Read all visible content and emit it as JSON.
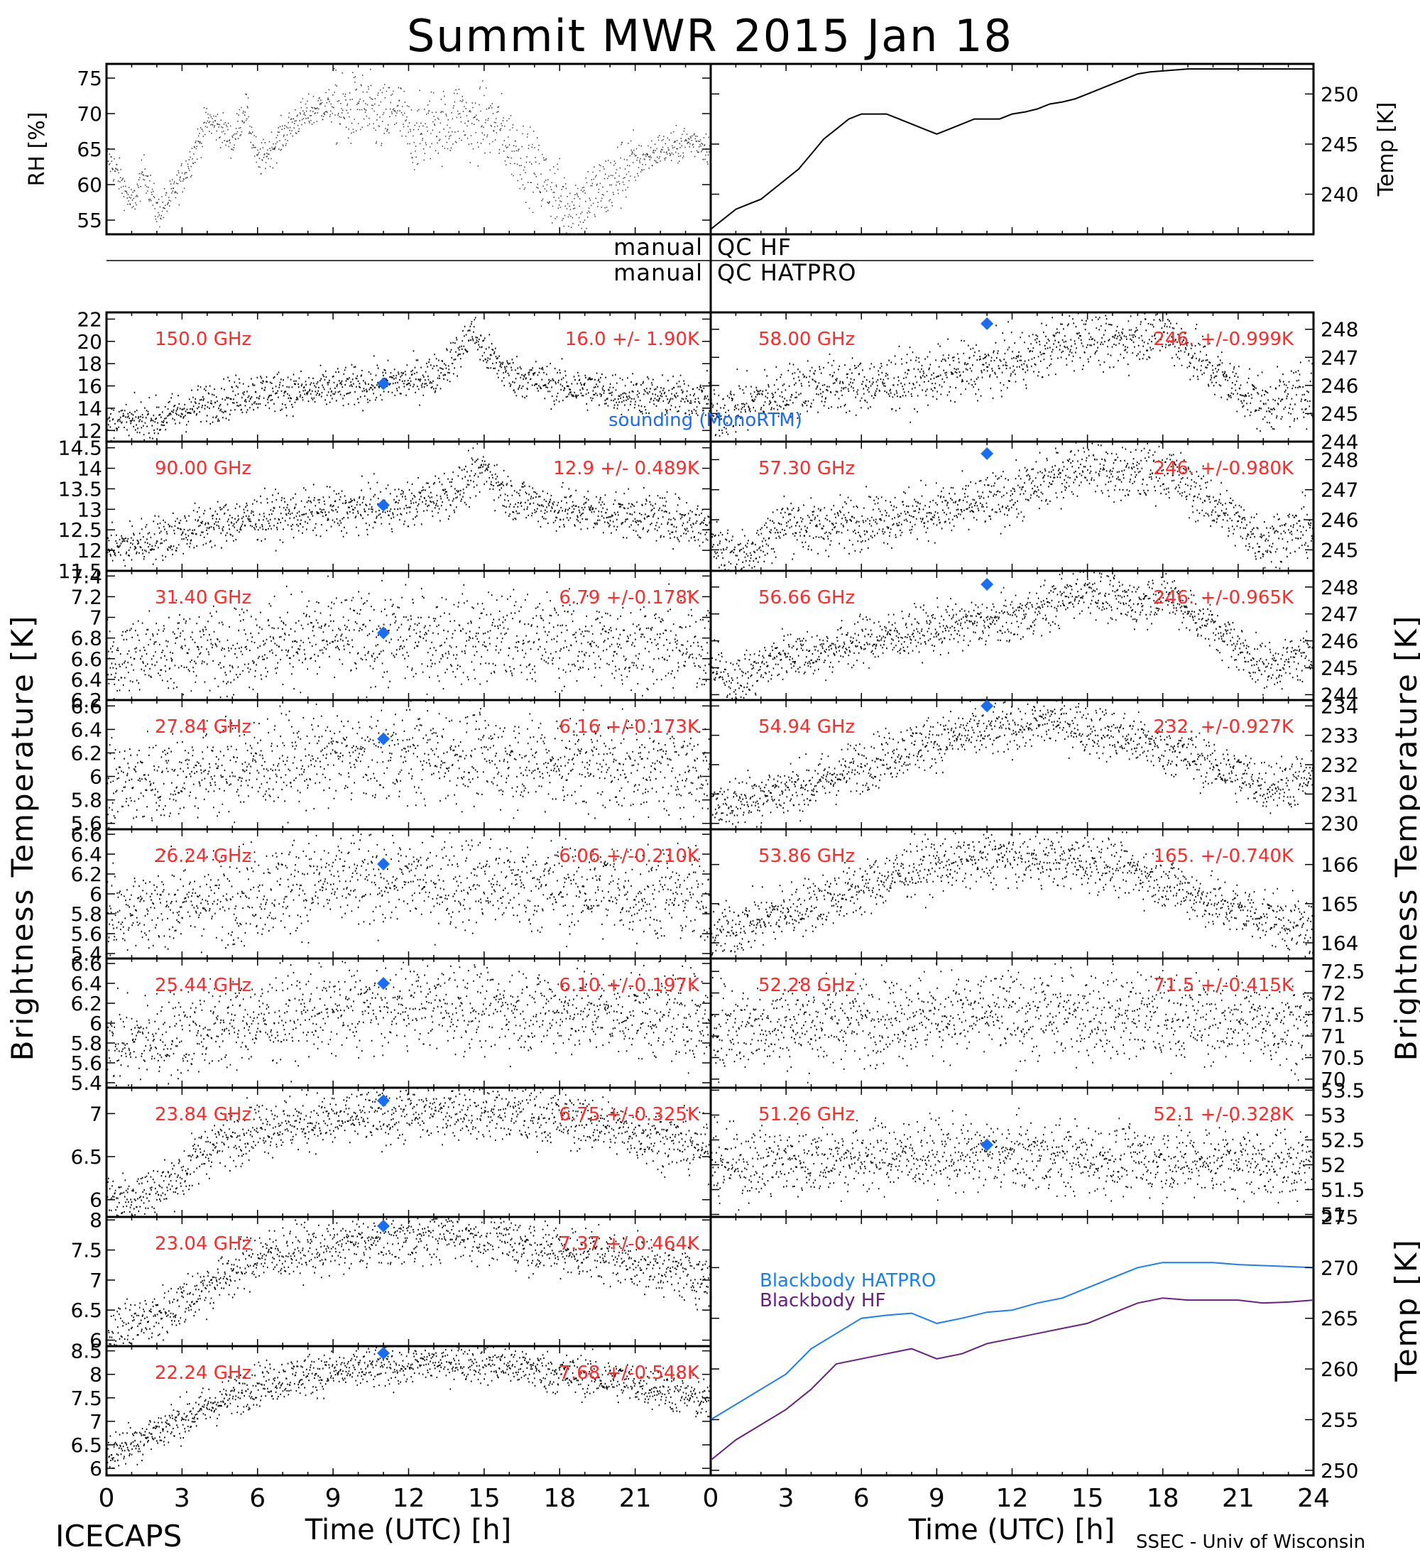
{
  "title": "Summit MWR 2015 Jan 18",
  "labels": {
    "rh_axis": "RH [%]",
    "temp_axis": "Temp [K]",
    "bt_axis_left": "Brightness Temperature [K]",
    "bt_axis_right": "Brightness Temperature [K]",
    "bb_axis": "Temp [K]",
    "x_label_left": "Time (UTC) [h]",
    "x_label_right": "Time (UTC) [h]",
    "qc_manual_1": "manual",
    "qc_label_1": "QC HF",
    "qc_manual_2": "manual",
    "qc_label_2": "QC HATPRO",
    "sounding": "sounding (MonoRTM)",
    "footer_left": "ICECAPS",
    "footer_right": "SSEC - Univ of Wisconsin"
  },
  "colors": {
    "data": "#000000",
    "freq_text": "#ff2a2a",
    "sounding": "#1a6cf0",
    "bb_hatpro": "#1a7ff0",
    "bb_hf": "#6a2080"
  },
  "chart_data": [
    {
      "type": "scatter",
      "id": "rh",
      "xlim": [
        0,
        24
      ],
      "ylim": [
        53,
        77
      ],
      "yticks": [
        55,
        60,
        65,
        70,
        75
      ],
      "x": [
        0,
        0.5,
        1,
        1.5,
        2,
        2.5,
        3,
        3.5,
        4,
        4.5,
        5,
        5.5,
        6,
        6.5,
        7,
        7.5,
        8,
        8.5,
        9,
        9.5,
        10,
        10.5,
        11,
        11.5,
        12,
        12.5,
        13,
        13.5,
        14,
        14.5,
        15,
        15.5,
        16,
        16.5,
        17,
        17.5,
        18,
        18.5,
        19,
        19.5,
        20,
        20.5,
        21,
        21.5,
        22,
        22.5,
        23,
        23.5,
        24
      ],
      "y": [
        64,
        61,
        57,
        62,
        56,
        58,
        61,
        65,
        69,
        68,
        66,
        71,
        63,
        65,
        67,
        69,
        70,
        71,
        71,
        70,
        71,
        70,
        69,
        71,
        67,
        67,
        69,
        68,
        70,
        68,
        69,
        68,
        66,
        64,
        62,
        60,
        58,
        57,
        58,
        59,
        60,
        62,
        63,
        64,
        65,
        65,
        66,
        66,
        65
      ]
    },
    {
      "type": "line",
      "id": "temp",
      "xlim": [
        0,
        24
      ],
      "ylim": [
        236,
        253
      ],
      "yticks": [
        240,
        245,
        250
      ],
      "x": [
        0,
        0.5,
        1,
        1.5,
        2,
        2.5,
        3,
        3.5,
        4,
        4.5,
        5,
        5.5,
        6,
        6.5,
        7,
        7.5,
        8,
        8.5,
        9,
        9.5,
        10,
        10.5,
        11,
        11.5,
        12,
        12.5,
        13,
        13.5,
        14,
        14.5,
        15,
        15.5,
        16,
        16.5,
        17,
        17.5,
        18,
        18.5,
        19,
        19.5,
        20,
        20.5,
        21,
        21.5,
        22,
        22.5,
        23,
        23.5,
        24
      ],
      "y": [
        236.5,
        237.5,
        238.5,
        239,
        239.5,
        240.5,
        241.5,
        242.5,
        244,
        245.5,
        246.5,
        247.5,
        248,
        248,
        248,
        247.5,
        247,
        246.5,
        246,
        246.5,
        247,
        247.5,
        247.5,
        247.5,
        248,
        248.2,
        248.5,
        249,
        249.2,
        249.5,
        250,
        250.5,
        251,
        251.5,
        252,
        252.2,
        252.3,
        252.4,
        252.5,
        252.5,
        252.5,
        252.5,
        252.5,
        252.5,
        252.5,
        252.5,
        252.5,
        252.5,
        252.5
      ]
    },
    {
      "type": "scatter",
      "id": "bt_left",
      "panels": [
        {
          "freq": "150.0 GHz",
          "stat": "16.0 +/-  1.90K",
          "ylim": [
            11,
            22.6
          ],
          "yticks": [
            12,
            14,
            16,
            18,
            20,
            22
          ],
          "noise": 0.9,
          "sounding": [
            11,
            16.2
          ],
          "x": [
            0,
            2,
            4,
            6,
            8,
            10,
            12,
            13,
            14,
            14.5,
            15,
            16,
            18,
            20,
            22,
            24
          ],
          "y": [
            12.5,
            13,
            14.5,
            15.5,
            15.5,
            16,
            16.5,
            17,
            19,
            21,
            19,
            17,
            16,
            15.5,
            15,
            15
          ]
        },
        {
          "freq": "90.00 GHz",
          "stat": "12.9 +/- 0.489K",
          "ylim": [
            11.5,
            14.65
          ],
          "yticks": [
            11.5,
            12.0,
            12.5,
            13.0,
            13.5,
            14.0,
            14.5
          ],
          "noise": 0.28,
          "sounding": [
            11,
            13.1
          ],
          "x": [
            0,
            2,
            4,
            6,
            8,
            10,
            12,
            14,
            15,
            16,
            18,
            20,
            22,
            24
          ],
          "y": [
            12.0,
            12.3,
            12.6,
            12.8,
            12.9,
            13.0,
            13.1,
            13.5,
            14.0,
            13.3,
            13.0,
            12.9,
            12.8,
            12.6
          ]
        },
        {
          "freq": "31.40 GHz",
          "stat": "6.79 +/-0.178K",
          "ylim": [
            6.2,
            7.45
          ],
          "yticks": [
            6.2,
            6.4,
            6.6,
            6.8,
            7.0,
            7.2,
            7.4
          ],
          "noise": 0.22,
          "sounding": [
            11,
            6.85
          ],
          "x": [
            0,
            4,
            8,
            12,
            16,
            20,
            24
          ],
          "y": [
            6.6,
            6.7,
            6.8,
            6.8,
            6.8,
            6.75,
            6.7
          ]
        },
        {
          "freq": "27.84 GHz",
          "stat": "6.16 +/-0.173K",
          "ylim": [
            5.55,
            6.65
          ],
          "yticks": [
            5.6,
            5.8,
            6.0,
            6.2,
            6.4,
            6.6
          ],
          "noise": 0.2,
          "sounding": [
            11,
            6.32
          ],
          "x": [
            0,
            4,
            8,
            12,
            16,
            20,
            24
          ],
          "y": [
            5.9,
            6.05,
            6.15,
            6.2,
            6.15,
            6.1,
            6.05
          ]
        },
        {
          "freq": "26.24 GHz",
          "stat": "6.06 +/-0.210K",
          "ylim": [
            5.35,
            6.65
          ],
          "yticks": [
            5.4,
            5.6,
            5.8,
            6.0,
            6.2,
            6.4,
            6.6
          ],
          "noise": 0.24,
          "sounding": [
            11,
            6.3
          ],
          "x": [
            0,
            4,
            8,
            12,
            16,
            20,
            24
          ],
          "y": [
            5.8,
            5.95,
            6.1,
            6.15,
            6.1,
            6.05,
            5.95
          ]
        },
        {
          "freq": "25.44 GHz",
          "stat": "6.10 +/-0.197K",
          "ylim": [
            5.35,
            6.65
          ],
          "yticks": [
            5.4,
            5.6,
            5.8,
            6.0,
            6.2,
            6.4,
            6.6
          ],
          "noise": 0.22,
          "sounding": [
            11,
            6.4
          ],
          "x": [
            0,
            4,
            8,
            12,
            16,
            20,
            24
          ],
          "y": [
            5.75,
            5.95,
            6.1,
            6.2,
            6.15,
            6.1,
            6.05
          ]
        },
        {
          "freq": "23.84 GHz",
          "stat": "6.75 +/-0.325K",
          "ylim": [
            5.8,
            7.3
          ],
          "yticks": [
            6.0,
            6.5,
            7.0
          ],
          "noise": 0.16,
          "sounding": [
            11,
            7.15
          ],
          "x": [
            0,
            2,
            3,
            4,
            6,
            8,
            10,
            12,
            14,
            16,
            18,
            20,
            22,
            24
          ],
          "y": [
            6.0,
            6.1,
            6.3,
            6.6,
            6.85,
            6.9,
            6.95,
            7.0,
            7.05,
            7.0,
            6.95,
            6.85,
            6.7,
            6.6
          ]
        },
        {
          "freq": "23.04 GHz",
          "stat": "7.37 +/-0.464K",
          "ylim": [
            5.9,
            8.05
          ],
          "yticks": [
            6.0,
            6.5,
            7.0,
            7.5,
            8.0
          ],
          "noise": 0.22,
          "sounding": [
            11,
            7.9
          ],
          "x": [
            0,
            2,
            4,
            6,
            8,
            10,
            12,
            14,
            16,
            18,
            20,
            22,
            24
          ],
          "y": [
            6.1,
            6.4,
            6.9,
            7.4,
            7.5,
            7.6,
            7.7,
            7.8,
            7.65,
            7.5,
            7.4,
            7.2,
            7.0
          ]
        },
        {
          "freq": "22.24 GHz",
          "stat": "7.68 +/-0.548K",
          "ylim": [
            5.85,
            8.6
          ],
          "yticks": [
            6.0,
            6.5,
            7.0,
            7.5,
            8.0,
            8.5
          ],
          "noise": 0.22,
          "sounding": [
            11,
            8.45
          ],
          "x": [
            0,
            2,
            4,
            6,
            8,
            10,
            12,
            14,
            16,
            18,
            20,
            22,
            24
          ],
          "y": [
            6.3,
            6.8,
            7.3,
            7.8,
            8.0,
            8.1,
            8.2,
            8.3,
            8.2,
            8.0,
            7.9,
            7.7,
            7.4
          ]
        }
      ]
    },
    {
      "type": "scatter",
      "id": "bt_right",
      "panels": [
        {
          "freq": "58.00 GHz",
          "stat": "246. +/-0.999K",
          "ylim": [
            244,
            248.6
          ],
          "yticks": [
            244,
            245,
            246,
            247,
            248
          ],
          "noise": 0.5,
          "sounding": [
            11,
            248.2
          ],
          "x": [
            0,
            2,
            4,
            6,
            8,
            10,
            12,
            14,
            15,
            16,
            17,
            18,
            20,
            22,
            24
          ],
          "y": [
            245,
            245.5,
            246,
            246,
            246.2,
            246.5,
            246.8,
            247.5,
            247.8,
            247.5,
            247.8,
            248,
            246.5,
            245.3,
            245.8
          ]
        },
        {
          "freq": "57.30 GHz",
          "stat": "246. +/-0.980K",
          "ylim": [
            244.3,
            248.6
          ],
          "yticks": [
            245,
            246,
            247,
            248
          ],
          "noise": 0.45,
          "sounding": [
            11,
            248.2
          ],
          "x": [
            0,
            1,
            2,
            3,
            4,
            6,
            8,
            10,
            12,
            14,
            15,
            16,
            17,
            18,
            20,
            22,
            24
          ],
          "y": [
            245.3,
            244.8,
            245.2,
            246,
            245.7,
            246,
            246.2,
            246.4,
            246.8,
            247.5,
            248,
            247.5,
            247.5,
            247.7,
            246.5,
            245.3,
            245.8
          ]
        },
        {
          "freq": "56.66 GHz",
          "stat": "246. +/-0.965K",
          "ylim": [
            243.8,
            248.6
          ],
          "yticks": [
            244,
            245,
            246,
            247,
            248
          ],
          "noise": 0.45,
          "sounding": [
            11,
            248.1
          ],
          "x": [
            0,
            1,
            2,
            3,
            4,
            6,
            8,
            10,
            12,
            14,
            15,
            16,
            17,
            18,
            20,
            22,
            24
          ],
          "y": [
            245,
            244.5,
            245,
            245.6,
            245.5,
            246,
            246.3,
            246.6,
            246.8,
            247.5,
            248,
            247.5,
            247.4,
            247.8,
            246.5,
            245,
            245.5
          ]
        },
        {
          "freq": "54.94 GHz",
          "stat": "232. +/-0.927K",
          "ylim": [
            229.8,
            234.2
          ],
          "yticks": [
            230,
            231,
            232,
            233,
            234
          ],
          "noise": 0.45,
          "sounding": [
            11,
            234
          ],
          "x": [
            0,
            2,
            4,
            6,
            8,
            10,
            12,
            14,
            16,
            18,
            20,
            22,
            24
          ],
          "y": [
            230.5,
            231,
            231.3,
            232,
            232.6,
            233,
            233.3,
            233.5,
            233,
            232.6,
            232,
            231.3,
            231.5
          ]
        },
        {
          "freq": "53.86 GHz",
          "stat": "165. +/-0.740K",
          "ylim": [
            163.6,
            166.9
          ],
          "yticks": [
            164,
            165,
            166
          ],
          "noise": 0.35,
          "sounding": null,
          "x": [
            0,
            2,
            4,
            6,
            8,
            10,
            12,
            14,
            16,
            18,
            20,
            22,
            24
          ],
          "y": [
            164.2,
            164.6,
            165,
            165.4,
            165.9,
            166.1,
            166.2,
            166.1,
            166,
            165.6,
            165,
            164.7,
            164.3
          ]
        },
        {
          "freq": "52.28 GHz",
          "stat": "71.5 +/-0.415K",
          "ylim": [
            69.8,
            72.8
          ],
          "yticks": [
            70.0,
            70.5,
            71.0,
            71.5,
            72.0,
            72.5
          ],
          "noise": 0.5,
          "sounding": null,
          "x": [
            0,
            4,
            8,
            12,
            16,
            20,
            24
          ],
          "y": [
            71.2,
            71.3,
            71.5,
            71.5,
            71.5,
            71.4,
            71.3
          ]
        },
        {
          "freq": "51.26 GHz",
          "stat": "52.1 +/-0.328K",
          "ylim": [
            50.95,
            53.55
          ],
          "yticks": [
            51.0,
            51.5,
            52.0,
            52.5,
            53.0,
            53.5
          ],
          "noise": 0.35,
          "sounding": [
            11,
            52.4
          ],
          "x": [
            0,
            4,
            8,
            12,
            16,
            20,
            24
          ],
          "y": [
            52.0,
            52.1,
            52.2,
            52.2,
            52.1,
            52.1,
            52.0
          ]
        }
      ]
    },
    {
      "type": "line",
      "id": "blackbody",
      "xlim": [
        0,
        24
      ],
      "ylim": [
        249.5,
        275
      ],
      "yticks": [
        250,
        255,
        260,
        265,
        270,
        275
      ],
      "series": [
        {
          "name": "Blackbody HATPRO",
          "x": [
            0,
            1,
            2,
            3,
            4,
            5,
            6,
            7,
            8,
            9,
            10,
            11,
            12,
            13,
            14,
            15,
            16,
            17,
            18,
            19,
            20,
            21,
            22,
            23,
            24
          ],
          "y": [
            255,
            256.5,
            258,
            259.5,
            262,
            263.5,
            265,
            265.3,
            265.5,
            264.5,
            265,
            265.6,
            265.8,
            266.5,
            267,
            268,
            269,
            270,
            270.5,
            270.5,
            270.5,
            270.3,
            270.2,
            270.1,
            270
          ]
        },
        {
          "name": "Blackbody HF",
          "x": [
            0,
            1,
            2,
            3,
            4,
            5,
            6,
            7,
            8,
            9,
            10,
            11,
            12,
            13,
            14,
            15,
            16,
            17,
            18,
            19,
            20,
            21,
            22,
            23,
            24
          ],
          "y": [
            251,
            253,
            254.5,
            256,
            258,
            260.5,
            261,
            261.5,
            262,
            261,
            261.5,
            262.5,
            263,
            263.5,
            264,
            264.5,
            265.5,
            266.5,
            267,
            266.8,
            266.8,
            266.8,
            266.5,
            266.6,
            266.8
          ]
        }
      ]
    }
  ]
}
